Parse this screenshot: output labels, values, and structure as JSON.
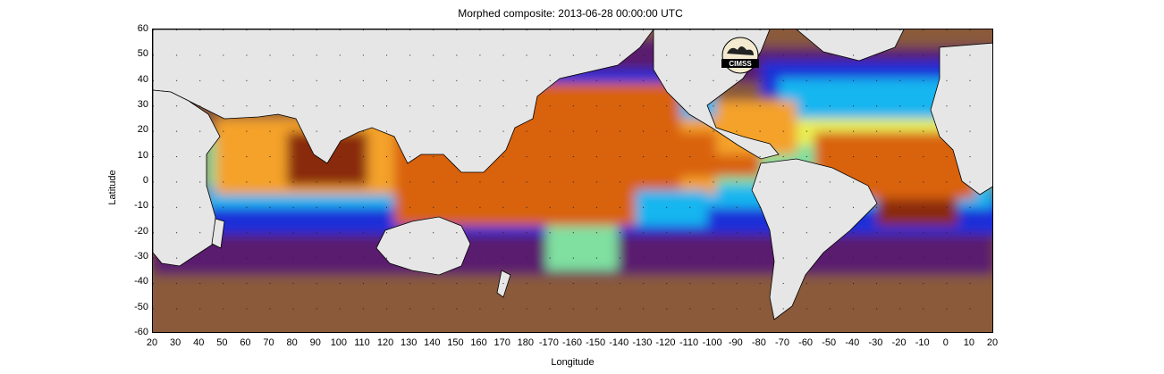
{
  "chart": {
    "title": "Morphed composite: 2013-06-28 00:00:00 UTC",
    "xlabel": "Longitude",
    "ylabel": "Latitude",
    "logo_text": "CIMSS",
    "x_ticks": [
      "20",
      "30",
      "40",
      "50",
      "60",
      "70",
      "80",
      "90",
      "100",
      "110",
      "120",
      "130",
      "140",
      "150",
      "160",
      "170",
      "180",
      "-170",
      "-160",
      "-150",
      "-140",
      "-130",
      "-120",
      "-110",
      "-100",
      "-90",
      "-80",
      "-70",
      "-60",
      "-50",
      "-40",
      "-30",
      "-20",
      "-10",
      "0",
      "10",
      "20"
    ],
    "y_ticks": [
      "60",
      "50",
      "40",
      "30",
      "20",
      "10",
      "0",
      "-10",
      "-20",
      "-30",
      "-40",
      "-50",
      "-60"
    ],
    "grid": "dotted",
    "palette": [
      "#8a5a3b",
      "#5a1f6e",
      "#1a2fd8",
      "#16b6f0",
      "#7fe0a0",
      "#e8ef55",
      "#f4a22a",
      "#d9620a",
      "#8a2a08"
    ],
    "land_color": "#e6e6e6"
  },
  "chart_data": {
    "type": "heatmap",
    "title": "Morphed composite: 2013-06-28 00:00:00 UTC",
    "xlabel": "Longitude",
    "ylabel": "Latitude",
    "xlim": [
      20,
      380
    ],
    "ylim": [
      -60,
      60
    ]
  }
}
